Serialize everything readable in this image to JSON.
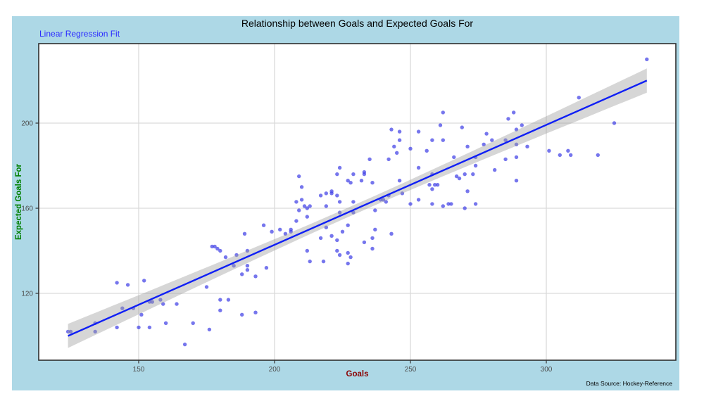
{
  "figure": {
    "background": "#ADD8E6"
  },
  "chart_data": {
    "type": "scatter",
    "title": "Relationship between Goals and Expected Goals For",
    "subtitle": "Linear Regression Fit",
    "xlabel": "Goals",
    "ylabel": "Expected Goals For",
    "caption": "Data Source: Hockey-Reference",
    "x_ticks": [
      150,
      200,
      250,
      300
    ],
    "y_ticks": [
      120,
      160,
      200
    ],
    "xlim": [
      113,
      348
    ],
    "ylim": [
      88,
      238
    ],
    "grid": true,
    "legend": "none",
    "points": [
      [
        124,
        102
      ],
      [
        125,
        102
      ],
      [
        134,
        106
      ],
      [
        134,
        102
      ],
      [
        142,
        125
      ],
      [
        142,
        104
      ],
      [
        144,
        113
      ],
      [
        146,
        124
      ],
      [
        148,
        113
      ],
      [
        150,
        104
      ],
      [
        151,
        110
      ],
      [
        152,
        126
      ],
      [
        154,
        116
      ],
      [
        155,
        116
      ],
      [
        154,
        104
      ],
      [
        158,
        117
      ],
      [
        159,
        115
      ],
      [
        160,
        106
      ],
      [
        164,
        115
      ],
      [
        167,
        96
      ],
      [
        170,
        106
      ],
      [
        175,
        123
      ],
      [
        176,
        103
      ],
      [
        177,
        142
      ],
      [
        178,
        142
      ],
      [
        179,
        141
      ],
      [
        180,
        140
      ],
      [
        180,
        117
      ],
      [
        180,
        112
      ],
      [
        182,
        137
      ],
      [
        183,
        117
      ],
      [
        185,
        133
      ],
      [
        186,
        138
      ],
      [
        188,
        129
      ],
      [
        188,
        110
      ],
      [
        189,
        148
      ],
      [
        190,
        140
      ],
      [
        190,
        133
      ],
      [
        190,
        131
      ],
      [
        193,
        128
      ],
      [
        193,
        111
      ],
      [
        196,
        152
      ],
      [
        197,
        132
      ],
      [
        199,
        149
      ],
      [
        202,
        150
      ],
      [
        204,
        148
      ],
      [
        206,
        150
      ],
      [
        206,
        149
      ],
      [
        208,
        154
      ],
      [
        208,
        163
      ],
      [
        209,
        175
      ],
      [
        209,
        159
      ],
      [
        210,
        170
      ],
      [
        210,
        164
      ],
      [
        211,
        161
      ],
      [
        212,
        160
      ],
      [
        212,
        156
      ],
      [
        212,
        140
      ],
      [
        213,
        161
      ],
      [
        213,
        135
      ],
      [
        217,
        166
      ],
      [
        217,
        146
      ],
      [
        218,
        135
      ],
      [
        219,
        167
      ],
      [
        219,
        161
      ],
      [
        219,
        151
      ],
      [
        221,
        168
      ],
      [
        221,
        167
      ],
      [
        221,
        147
      ],
      [
        223,
        176
      ],
      [
        223,
        166
      ],
      [
        223,
        145
      ],
      [
        223,
        140
      ],
      [
        224,
        179
      ],
      [
        224,
        163
      ],
      [
        224,
        158
      ],
      [
        224,
        138
      ],
      [
        225,
        149
      ],
      [
        227,
        173
      ],
      [
        227,
        152
      ],
      [
        227,
        139
      ],
      [
        227,
        134
      ],
      [
        228,
        172
      ],
      [
        228,
        137
      ],
      [
        229,
        176
      ],
      [
        229,
        163
      ],
      [
        229,
        158
      ],
      [
        232,
        173
      ],
      [
        233,
        177
      ],
      [
        233,
        176
      ],
      [
        233,
        144
      ],
      [
        235,
        183
      ],
      [
        236,
        172
      ],
      [
        236,
        146
      ],
      [
        236,
        141
      ],
      [
        237,
        159
      ],
      [
        237,
        150
      ],
      [
        239,
        164
      ],
      [
        240,
        164
      ],
      [
        241,
        163
      ],
      [
        242,
        183
      ],
      [
        242,
        166
      ],
      [
        243,
        197
      ],
      [
        243,
        148
      ],
      [
        244,
        189
      ],
      [
        245,
        186
      ],
      [
        246,
        196
      ],
      [
        246,
        192
      ],
      [
        246,
        173
      ],
      [
        247,
        167
      ],
      [
        250,
        188
      ],
      [
        250,
        162
      ],
      [
        253,
        196
      ],
      [
        253,
        179
      ],
      [
        253,
        164
      ],
      [
        256,
        187
      ],
      [
        257,
        171
      ],
      [
        258,
        192
      ],
      [
        258,
        176
      ],
      [
        258,
        169
      ],
      [
        258,
        162
      ],
      [
        259,
        171
      ],
      [
        260,
        171
      ],
      [
        261,
        199
      ],
      [
        262,
        205
      ],
      [
        262,
        192
      ],
      [
        262,
        161
      ],
      [
        264,
        162
      ],
      [
        265,
        162
      ],
      [
        266,
        184
      ],
      [
        267,
        175
      ],
      [
        268,
        174
      ],
      [
        269,
        198
      ],
      [
        270,
        176
      ],
      [
        270,
        160
      ],
      [
        271,
        189
      ],
      [
        271,
        168
      ],
      [
        273,
        176
      ],
      [
        274,
        184
      ],
      [
        274,
        180
      ],
      [
        274,
        162
      ],
      [
        277,
        190
      ],
      [
        278,
        195
      ],
      [
        280,
        192
      ],
      [
        281,
        178
      ],
      [
        285,
        192
      ],
      [
        285,
        183
      ],
      [
        286,
        202
      ],
      [
        288,
        205
      ],
      [
        289,
        197
      ],
      [
        289,
        190
      ],
      [
        289,
        184
      ],
      [
        289,
        173
      ],
      [
        291,
        199
      ],
      [
        293,
        189
      ],
      [
        301,
        187
      ],
      [
        305,
        185
      ],
      [
        308,
        187
      ],
      [
        309,
        185
      ],
      [
        312,
        212
      ],
      [
        319,
        185
      ],
      [
        325,
        200
      ],
      [
        337,
        230
      ]
    ],
    "regression_line": {
      "x_start": 124,
      "y_start": 100,
      "x_end": 337,
      "y_end": 220
    },
    "confidence_band": {
      "mid_halfwidth": 2.2,
      "end_halfwidth": 5.7,
      "x_mid": 230
    },
    "colors": {
      "figure_bg": "#ADD8E6",
      "plot_bg": "#ffffff",
      "point": "#3c3ce6",
      "line": "#0f1ff5",
      "band": "#9e9e9e",
      "subtitle": "#2b2bff",
      "xlabel": "#8B0000",
      "ylabel": "#008000",
      "tick_label": "#4d4d4d",
      "grid": "#dadada",
      "border": "#2e2e2e",
      "title": "#000000",
      "caption": "#000000"
    }
  }
}
